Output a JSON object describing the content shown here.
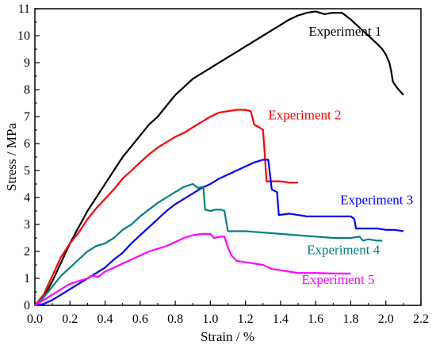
{
  "chart_data": {
    "type": "line",
    "title": "",
    "xlabel": "Strain / %",
    "ylabel": "Stress / MPa",
    "xlim": [
      0.0,
      2.2
    ],
    "ylim": [
      0,
      11
    ],
    "xticks": [
      "0.0",
      "0.2",
      "0.4",
      "0.6",
      "0.8",
      "1.0",
      "1.2",
      "1.4",
      "1.6",
      "1.8",
      "2.0",
      "2.2"
    ],
    "yticks": [
      "0",
      "1",
      "2",
      "3",
      "4",
      "5",
      "6",
      "7",
      "8",
      "9",
      "10",
      "11"
    ],
    "grid": false,
    "legend": "none",
    "series": [
      {
        "name": "Experiment 1",
        "color": "#000000",
        "points": [
          [
            0.0,
            0.0
          ],
          [
            0.05,
            0.3
          ],
          [
            0.1,
            0.9
          ],
          [
            0.15,
            1.6
          ],
          [
            0.2,
            2.3
          ],
          [
            0.25,
            2.9
          ],
          [
            0.3,
            3.5
          ],
          [
            0.35,
            4.0
          ],
          [
            0.4,
            4.5
          ],
          [
            0.45,
            5.0
          ],
          [
            0.5,
            5.5
          ],
          [
            0.55,
            5.9
          ],
          [
            0.6,
            6.3
          ],
          [
            0.65,
            6.7
          ],
          [
            0.7,
            7.0
          ],
          [
            0.75,
            7.4
          ],
          [
            0.8,
            7.8
          ],
          [
            0.85,
            8.1
          ],
          [
            0.9,
            8.4
          ],
          [
            0.95,
            8.6
          ],
          [
            1.0,
            8.8
          ],
          [
            1.05,
            9.0
          ],
          [
            1.1,
            9.2
          ],
          [
            1.15,
            9.4
          ],
          [
            1.2,
            9.6
          ],
          [
            1.25,
            9.8
          ],
          [
            1.3,
            10.0
          ],
          [
            1.35,
            10.2
          ],
          [
            1.4,
            10.4
          ],
          [
            1.45,
            10.6
          ],
          [
            1.5,
            10.75
          ],
          [
            1.55,
            10.85
          ],
          [
            1.6,
            10.9
          ],
          [
            1.65,
            10.8
          ],
          [
            1.7,
            10.85
          ],
          [
            1.75,
            10.85
          ],
          [
            1.8,
            10.6
          ],
          [
            1.85,
            10.3
          ],
          [
            1.9,
            10.0
          ],
          [
            1.95,
            9.7
          ],
          [
            1.98,
            9.5
          ],
          [
            2.0,
            9.3
          ],
          [
            2.02,
            9.0
          ],
          [
            2.03,
            8.7
          ],
          [
            2.04,
            8.3
          ],
          [
            2.06,
            8.1
          ],
          [
            2.08,
            7.95
          ],
          [
            2.1,
            7.8
          ]
        ]
      },
      {
        "name": "Experiment 2",
        "color": "#ff0000",
        "points": [
          [
            0.0,
            0.0
          ],
          [
            0.05,
            0.4
          ],
          [
            0.1,
            1.1
          ],
          [
            0.15,
            1.8
          ],
          [
            0.2,
            2.3
          ],
          [
            0.25,
            2.7
          ],
          [
            0.3,
            3.2
          ],
          [
            0.35,
            3.6
          ],
          [
            0.4,
            3.95
          ],
          [
            0.45,
            4.3
          ],
          [
            0.5,
            4.7
          ],
          [
            0.55,
            5.0
          ],
          [
            0.6,
            5.3
          ],
          [
            0.65,
            5.6
          ],
          [
            0.7,
            5.85
          ],
          [
            0.75,
            6.05
          ],
          [
            0.8,
            6.25
          ],
          [
            0.85,
            6.4
          ],
          [
            0.9,
            6.6
          ],
          [
            0.95,
            6.8
          ],
          [
            1.0,
            7.0
          ],
          [
            1.05,
            7.15
          ],
          [
            1.1,
            7.2
          ],
          [
            1.15,
            7.25
          ],
          [
            1.2,
            7.25
          ],
          [
            1.23,
            7.2
          ],
          [
            1.25,
            6.7
          ],
          [
            1.28,
            6.6
          ],
          [
            1.3,
            6.5
          ],
          [
            1.31,
            5.6
          ],
          [
            1.32,
            4.6
          ],
          [
            1.4,
            4.6
          ],
          [
            1.45,
            4.55
          ],
          [
            1.5,
            4.55
          ]
        ]
      },
      {
        "name": "Experiment 3",
        "color": "#0000ff",
        "points": [
          [
            0.0,
            0.0
          ],
          [
            0.05,
            0.05
          ],
          [
            0.1,
            0.2
          ],
          [
            0.15,
            0.4
          ],
          [
            0.2,
            0.6
          ],
          [
            0.25,
            0.8
          ],
          [
            0.3,
            1.0
          ],
          [
            0.35,
            1.2
          ],
          [
            0.4,
            1.4
          ],
          [
            0.45,
            1.7
          ],
          [
            0.5,
            1.95
          ],
          [
            0.55,
            2.3
          ],
          [
            0.6,
            2.6
          ],
          [
            0.65,
            2.9
          ],
          [
            0.7,
            3.2
          ],
          [
            0.75,
            3.5
          ],
          [
            0.8,
            3.75
          ],
          [
            0.85,
            3.95
          ],
          [
            0.9,
            4.15
          ],
          [
            0.95,
            4.35
          ],
          [
            1.0,
            4.5
          ],
          [
            1.05,
            4.7
          ],
          [
            1.1,
            4.85
          ],
          [
            1.15,
            5.0
          ],
          [
            1.2,
            5.15
          ],
          [
            1.25,
            5.3
          ],
          [
            1.3,
            5.4
          ],
          [
            1.33,
            5.4
          ],
          [
            1.35,
            4.3
          ],
          [
            1.38,
            4.2
          ],
          [
            1.39,
            3.35
          ],
          [
            1.45,
            3.4
          ],
          [
            1.5,
            3.35
          ],
          [
            1.55,
            3.3
          ],
          [
            1.6,
            3.3
          ],
          [
            1.65,
            3.3
          ],
          [
            1.7,
            3.3
          ],
          [
            1.75,
            3.3
          ],
          [
            1.8,
            3.3
          ],
          [
            1.82,
            3.2
          ],
          [
            1.83,
            2.85
          ],
          [
            1.9,
            2.85
          ],
          [
            1.95,
            2.85
          ],
          [
            2.0,
            2.8
          ],
          [
            2.05,
            2.8
          ],
          [
            2.1,
            2.75
          ]
        ]
      },
      {
        "name": "Experiment 4",
        "color": "#008080",
        "points": [
          [
            0.0,
            0.0
          ],
          [
            0.05,
            0.3
          ],
          [
            0.1,
            0.7
          ],
          [
            0.15,
            1.1
          ],
          [
            0.2,
            1.4
          ],
          [
            0.25,
            1.7
          ],
          [
            0.3,
            2.0
          ],
          [
            0.35,
            2.2
          ],
          [
            0.4,
            2.3
          ],
          [
            0.45,
            2.5
          ],
          [
            0.5,
            2.8
          ],
          [
            0.55,
            3.0
          ],
          [
            0.6,
            3.3
          ],
          [
            0.65,
            3.55
          ],
          [
            0.7,
            3.8
          ],
          [
            0.75,
            4.0
          ],
          [
            0.8,
            4.2
          ],
          [
            0.85,
            4.4
          ],
          [
            0.9,
            4.5
          ],
          [
            0.93,
            4.35
          ],
          [
            0.96,
            4.4
          ],
          [
            0.97,
            3.55
          ],
          [
            1.0,
            3.5
          ],
          [
            1.03,
            3.55
          ],
          [
            1.06,
            3.55
          ],
          [
            1.08,
            3.5
          ],
          [
            1.1,
            2.75
          ],
          [
            1.2,
            2.75
          ],
          [
            1.3,
            2.7
          ],
          [
            1.4,
            2.65
          ],
          [
            1.5,
            2.6
          ],
          [
            1.6,
            2.55
          ],
          [
            1.7,
            2.5
          ],
          [
            1.8,
            2.5
          ],
          [
            1.85,
            2.55
          ],
          [
            1.87,
            2.4
          ],
          [
            1.9,
            2.45
          ],
          [
            1.95,
            2.4
          ],
          [
            1.98,
            2.4
          ]
        ]
      },
      {
        "name": "Experiment 5",
        "color": "#ff00ff",
        "points": [
          [
            0.0,
            0.0
          ],
          [
            0.05,
            0.2
          ],
          [
            0.1,
            0.4
          ],
          [
            0.15,
            0.6
          ],
          [
            0.2,
            0.8
          ],
          [
            0.25,
            0.9
          ],
          [
            0.3,
            1.0
          ],
          [
            0.33,
            1.1
          ],
          [
            0.36,
            1.05
          ],
          [
            0.4,
            1.25
          ],
          [
            0.45,
            1.4
          ],
          [
            0.5,
            1.55
          ],
          [
            0.55,
            1.7
          ],
          [
            0.6,
            1.85
          ],
          [
            0.65,
            2.0
          ],
          [
            0.7,
            2.1
          ],
          [
            0.75,
            2.2
          ],
          [
            0.8,
            2.35
          ],
          [
            0.85,
            2.5
          ],
          [
            0.9,
            2.6
          ],
          [
            0.95,
            2.65
          ],
          [
            1.0,
            2.65
          ],
          [
            1.02,
            2.5
          ],
          [
            1.06,
            2.55
          ],
          [
            1.08,
            2.55
          ],
          [
            1.1,
            2.15
          ],
          [
            1.12,
            1.85
          ],
          [
            1.15,
            1.65
          ],
          [
            1.2,
            1.6
          ],
          [
            1.25,
            1.55
          ],
          [
            1.3,
            1.5
          ],
          [
            1.35,
            1.35
          ],
          [
            1.4,
            1.3
          ],
          [
            1.45,
            1.25
          ],
          [
            1.5,
            1.2
          ],
          [
            1.6,
            1.2
          ],
          [
            1.7,
            1.18
          ],
          [
            1.8,
            1.18
          ]
        ]
      }
    ],
    "annotations": [
      {
        "text": "Experiment 1",
        "x": 1.56,
        "y": 10.0,
        "color": "#000000"
      },
      {
        "text": "Experiment 2",
        "x": 1.33,
        "y": 6.9,
        "color": "#ff0000"
      },
      {
        "text": "Experiment 3",
        "x": 1.74,
        "y": 3.75,
        "color": "#0000ff"
      },
      {
        "text": "Experiment 4",
        "x": 1.55,
        "y": 1.9,
        "color": "#008080"
      },
      {
        "text": "Experiment 5",
        "x": 1.52,
        "y": 0.8,
        "color": "#ff00ff"
      }
    ]
  }
}
